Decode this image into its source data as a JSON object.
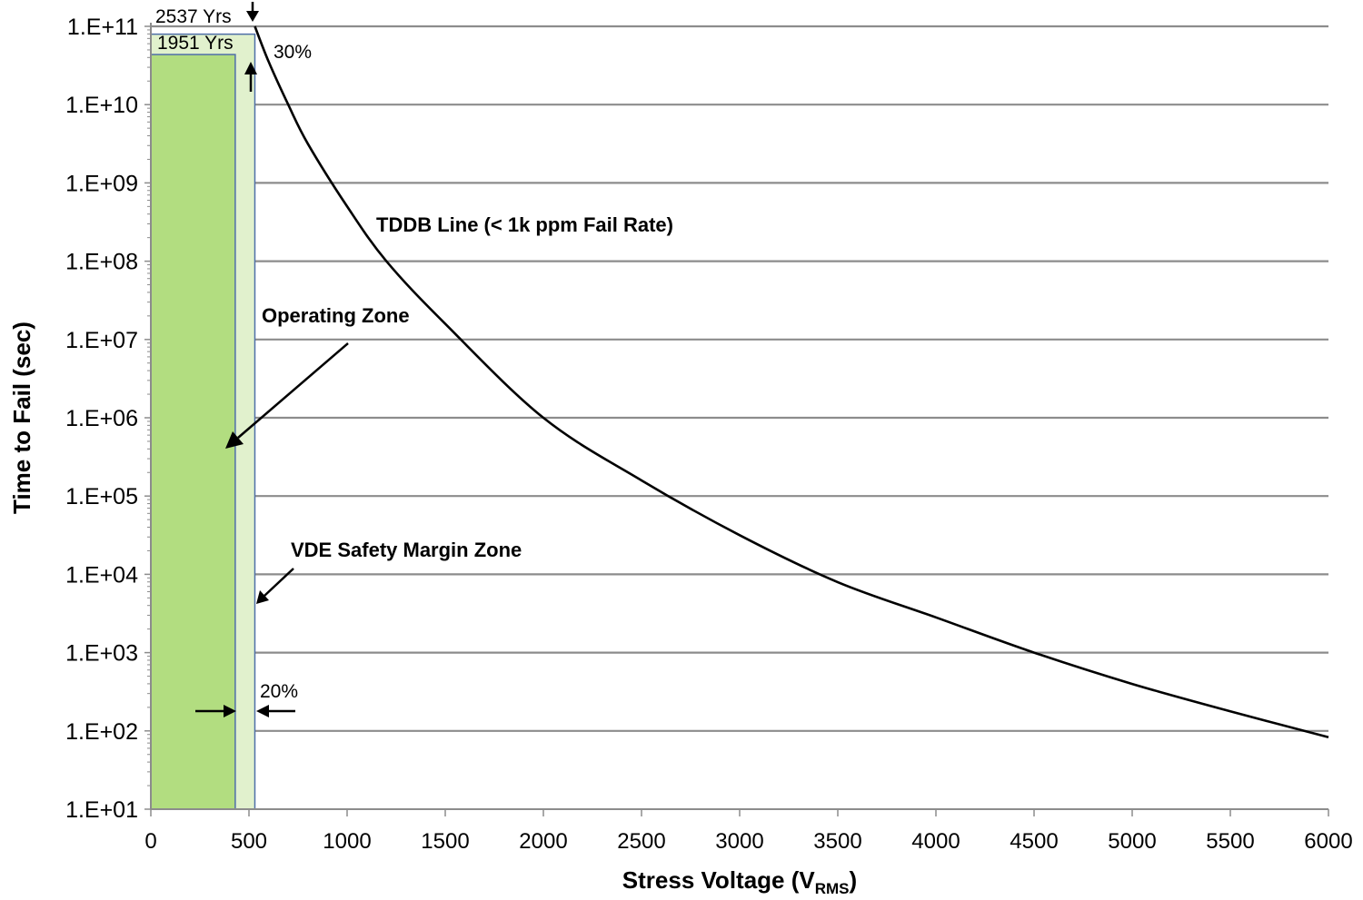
{
  "chart_data": {
    "type": "line",
    "title": "",
    "xlabel": "Stress Voltage (V",
    "xlabel_sub": "RMS",
    "xlabel_close": ")",
    "ylabel": "Time to Fail (sec)",
    "xlim": [
      0,
      6000
    ],
    "ylim_log10": [
      1,
      11
    ],
    "yscale": "log",
    "grid": "horizontal",
    "x_ticks": [
      0,
      500,
      1000,
      1500,
      2000,
      2500,
      3000,
      3500,
      4000,
      4500,
      5000,
      5500,
      6000
    ],
    "x_tick_labels": [
      "0",
      "500",
      "1000",
      "1500",
      "2000",
      "2500",
      "3000",
      "3500",
      "4000",
      "4500",
      "5000",
      "5500",
      "6000"
    ],
    "y_ticks_log10": [
      1,
      2,
      3,
      4,
      5,
      6,
      7,
      8,
      9,
      10,
      11
    ],
    "y_tick_labels": [
      "1.E+01",
      "1.E+02",
      "1.E+03",
      "1.E+04",
      "1.E+05",
      "1.E+06",
      "1.E+07",
      "1.E+08",
      "1.E+09",
      "1.E+10",
      "1.E+11"
    ],
    "series": [
      {
        "name": "TDDB Line (< 1k ppm Fail Rate)",
        "color": "#000000",
        "x": [
          530,
          600,
          700,
          800,
          1000,
          1200,
          1500,
          2000,
          2500,
          3000,
          3500,
          4000,
          4500,
          5000,
          5500,
          6000
        ],
        "y_log10": [
          11.0,
          10.55,
          10.0,
          9.5,
          8.7,
          8.0,
          7.2,
          6.0,
          5.2,
          4.5,
          3.9,
          3.45,
          3.0,
          2.6,
          2.25,
          1.92
        ]
      }
    ],
    "zones": [
      {
        "name": "Operating Zone",
        "x_start": 0,
        "x_end": 430,
        "y_top_log10": 10.64,
        "color": "#b2dd80"
      },
      {
        "name": "VDE Safety Margin Zone",
        "x_start": 0,
        "x_end": 530,
        "y_top_log10": 10.9,
        "color": "#e1f1cd"
      }
    ],
    "annotations": {
      "tddb": "TDDB Line (< 1k ppm Fail Rate)",
      "operating": "Operating Zone",
      "vde": "VDE Safety Margin Zone",
      "yrs_top": "2537 Yrs",
      "yrs_bottom": "1951 Yrs",
      "pct_top": "30%",
      "pct_bottom": "20%"
    },
    "colors": {
      "grid": "#8c8c8c",
      "zone_border": "#4f6fa8",
      "operating_fill": "#b2dd80",
      "margin_fill": "#e1f1cd"
    }
  }
}
